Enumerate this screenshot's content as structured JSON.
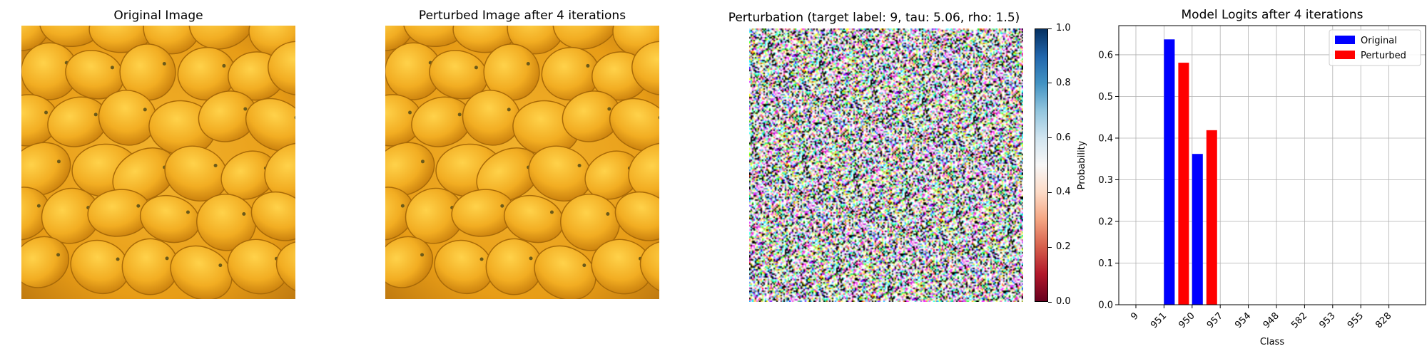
{
  "panels": {
    "original": {
      "title": "Original Image"
    },
    "perturbed": {
      "title": "Perturbed Image after 4 iterations"
    },
    "perturbation": {
      "title": "Perturbation (target label: 9, tau: 5.06, rho: 1.5)",
      "colorbar_ticks": [
        "0.0",
        "0.2",
        "0.4",
        "0.6",
        "0.8",
        "1.0"
      ],
      "colormap": [
        "#67001f",
        "#b2182b",
        "#d6604d",
        "#f4a582",
        "#fddbc7",
        "#f7f7f7",
        "#d1e5f0",
        "#92c5de",
        "#4393c3",
        "#2166ac",
        "#053061"
      ]
    }
  },
  "chart_data": {
    "type": "bar",
    "title": "Model Logits after 4 iterations",
    "xlabel": "Class",
    "ylabel": "Probability",
    "categories": [
      "9",
      "951",
      "950",
      "957",
      "954",
      "948",
      "582",
      "953",
      "955",
      "828"
    ],
    "series": [
      {
        "name": "Original",
        "color": "#0000ff",
        "values": [
          0,
          0.637,
          0.362,
          0,
          0,
          0,
          0,
          0,
          0,
          0
        ]
      },
      {
        "name": "Perturbed",
        "color": "#ff0000",
        "values": [
          0,
          0.581,
          0.419,
          0,
          0,
          0,
          0,
          0,
          0,
          0
        ]
      }
    ],
    "ylim": [
      0,
      0.67
    ],
    "yticks": [
      "0.0",
      "0.1",
      "0.2",
      "0.3",
      "0.4",
      "0.5",
      "0.6"
    ],
    "grid": true,
    "legend": "top-right"
  }
}
